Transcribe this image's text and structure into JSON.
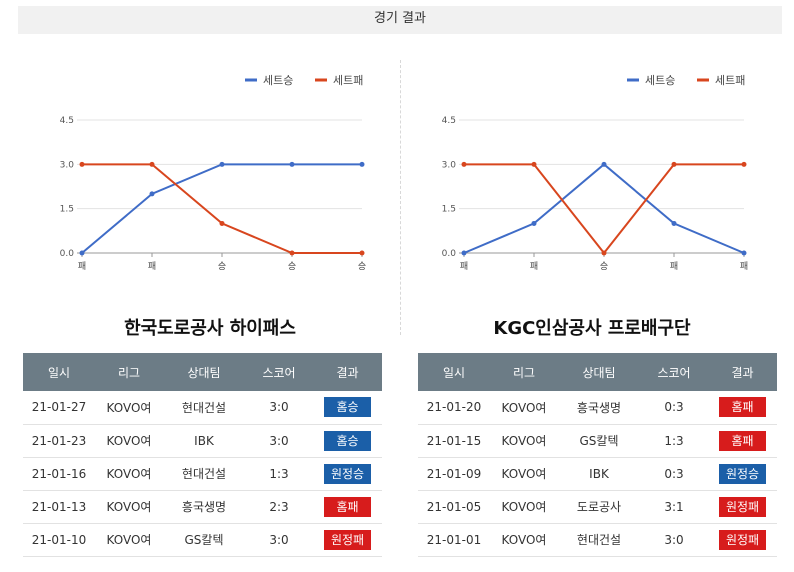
{
  "header": {
    "title": "경기 결과"
  },
  "colors": {
    "win": "#1b5fa8",
    "loss": "#d71c1c",
    "win_line": "#3f6cc7",
    "loss_line": "#d8461e"
  },
  "legend": {
    "win": "세트승",
    "loss": "세트패"
  },
  "teams": [
    {
      "name": "한국도로공사 하이패스",
      "chart_data": {
        "type": "line",
        "categories": [
          "패",
          "패",
          "승",
          "승",
          "승"
        ],
        "series": [
          {
            "name": "세트승",
            "values": [
              0,
              2,
              3,
              3,
              3
            ]
          },
          {
            "name": "세트패",
            "values": [
              3,
              3,
              1,
              0,
              0
            ]
          }
        ],
        "ylim": [
          0,
          4.5
        ],
        "yticks": [
          "4.5",
          "3.0",
          "1.5",
          "0.0"
        ],
        "legend_position": "top-right",
        "grid": true
      },
      "table": {
        "headers": [
          "일시",
          "리그",
          "상대팀",
          "스코어",
          "결과"
        ],
        "rows": [
          {
            "date": "21-01-27",
            "league": "KOVO여",
            "opponent": "현대건설",
            "score": "3:0",
            "result": "홈승",
            "win": true
          },
          {
            "date": "21-01-23",
            "league": "KOVO여",
            "opponent": "IBK",
            "score": "3:0",
            "result": "홈승",
            "win": true
          },
          {
            "date": "21-01-16",
            "league": "KOVO여",
            "opponent": "현대건설",
            "score": "1:3",
            "result": "원정승",
            "win": true
          },
          {
            "date": "21-01-13",
            "league": "KOVO여",
            "opponent": "흥국생명",
            "score": "2:3",
            "result": "홈패",
            "win": false
          },
          {
            "date": "21-01-10",
            "league": "KOVO여",
            "opponent": "GS칼텍",
            "score": "3:0",
            "result": "원정패",
            "win": false
          }
        ]
      }
    },
    {
      "name": "KGC인삼공사 프로배구단",
      "chart_data": {
        "type": "line",
        "categories": [
          "패",
          "패",
          "승",
          "패",
          "패"
        ],
        "series": [
          {
            "name": "세트승",
            "values": [
              0,
              1,
              3,
              1,
              0
            ]
          },
          {
            "name": "세트패",
            "values": [
              3,
              3,
              0,
              3,
              3
            ]
          }
        ],
        "ylim": [
          0,
          4.5
        ],
        "yticks": [
          "4.5",
          "3.0",
          "1.5",
          "0.0"
        ],
        "legend_position": "top-right",
        "grid": true
      },
      "table": {
        "headers": [
          "일시",
          "리그",
          "상대팀",
          "스코어",
          "결과"
        ],
        "rows": [
          {
            "date": "21-01-20",
            "league": "KOVO여",
            "opponent": "흥국생명",
            "score": "0:3",
            "result": "홈패",
            "win": false
          },
          {
            "date": "21-01-15",
            "league": "KOVO여",
            "opponent": "GS칼텍",
            "score": "1:3",
            "result": "홈패",
            "win": false
          },
          {
            "date": "21-01-09",
            "league": "KOVO여",
            "opponent": "IBK",
            "score": "0:3",
            "result": "원정승",
            "win": true
          },
          {
            "date": "21-01-05",
            "league": "KOVO여",
            "opponent": "도로공사",
            "score": "3:1",
            "result": "원정패",
            "win": false
          },
          {
            "date": "21-01-01",
            "league": "KOVO여",
            "opponent": "현대건설",
            "score": "3:0",
            "result": "원정패",
            "win": false
          }
        ]
      }
    }
  ]
}
